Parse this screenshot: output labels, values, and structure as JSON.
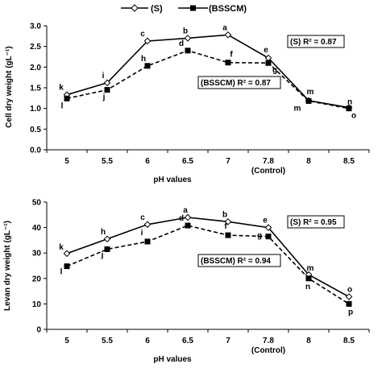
{
  "legend": {
    "s_label": "(S)",
    "bsscm_label": "(BSSCM)"
  },
  "chart_data": [
    {
      "type": "line",
      "ylabel": "Cell dry weight (gL⁻¹)",
      "xlabel": "pH values",
      "categories": [
        "5",
        "5.5",
        "6",
        "6.5",
        "7",
        "7.8",
        "8",
        "8.5"
      ],
      "category_sublabels": [
        "",
        "",
        "",
        "",
        "",
        "(Control)",
        "",
        ""
      ],
      "ylim": [
        0,
        3.0
      ],
      "yticks": [
        "0.0",
        "0.5",
        "1.0",
        "1.5",
        "2.0",
        "2.5",
        "3.0"
      ],
      "series": [
        {
          "name": "(S)",
          "values": [
            1.33,
            1.62,
            2.63,
            2.7,
            2.78,
            2.22,
            1.19,
            1.02
          ],
          "point_labels": [
            "k",
            "i",
            "c",
            "b",
            "a",
            "e",
            "m",
            "n"
          ],
          "r2_label": "(S)  R² = 0.87"
        },
        {
          "name": "(BSSCM)",
          "values": [
            1.24,
            1.45,
            2.03,
            2.4,
            2.11,
            2.1,
            1.18,
            1.0
          ],
          "point_labels": [
            "l",
            "j",
            "h",
            "d",
            "f",
            "g",
            "m",
            "o"
          ],
          "r2_label": "(BSSCM) R² = 0.87"
        }
      ]
    },
    {
      "type": "line",
      "ylabel": "Levan dry weight (gL⁻¹)",
      "xlabel": "pH values",
      "categories": [
        "5",
        "5.5",
        "6",
        "6.5",
        "7",
        "7.8",
        "8",
        "8.5"
      ],
      "category_sublabels": [
        "",
        "",
        "",
        "",
        "",
        "(Control)",
        "",
        ""
      ],
      "ylim": [
        0,
        50
      ],
      "yticks": [
        "0",
        "10",
        "20",
        "30",
        "40",
        "50"
      ],
      "series": [
        {
          "name": "(S)",
          "values": [
            29.8,
            35.5,
            41.2,
            44.0,
            42.3,
            40.0,
            21.5,
            12.8
          ],
          "point_labels": [
            "k",
            "h",
            "c",
            "a",
            "b",
            "e",
            "m",
            "o"
          ],
          "r2_label": "(S)  R² = 0.95"
        },
        {
          "name": "(BSSCM)",
          "values": [
            24.8,
            31.5,
            34.5,
            40.8,
            37.0,
            36.5,
            20.0,
            10.0
          ],
          "point_labels": [
            "l",
            "j",
            "i",
            "d",
            "f",
            "g",
            "n",
            "p"
          ],
          "r2_label": "(BSSCM) R² = 0.94"
        }
      ]
    }
  ]
}
